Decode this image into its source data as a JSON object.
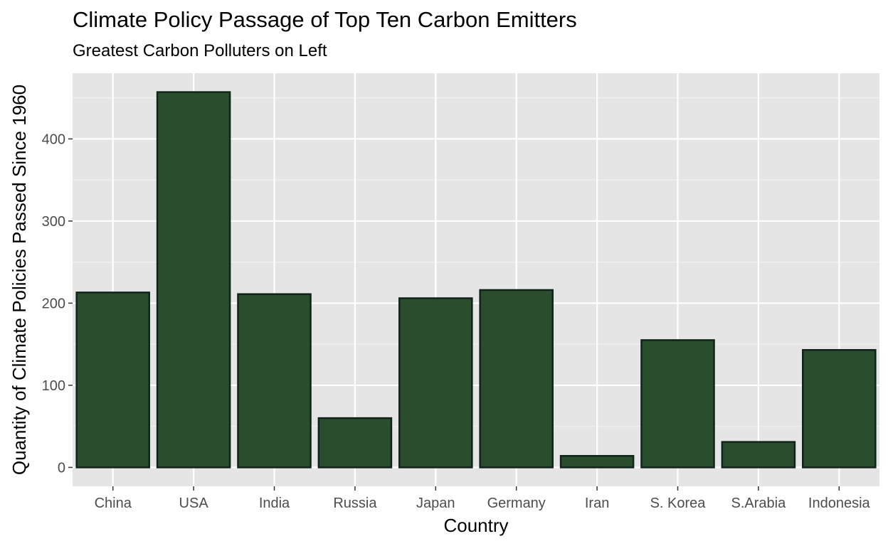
{
  "chart_data": {
    "type": "bar",
    "title": "Climate Policy Passage of Top Ten Carbon Emitters",
    "subtitle": "Greatest Carbon Polluters on Left",
    "xlabel": "Country",
    "ylabel": "Quantity of Climate Policies Passed Since 1960",
    "categories": [
      "China",
      "USA",
      "India",
      "Russia",
      "Japan",
      "Germany",
      "Iran",
      "S. Korea",
      "S.Arabia",
      "Indonesia"
    ],
    "values": [
      213,
      457,
      211,
      60,
      206,
      216,
      14,
      155,
      31,
      143
    ],
    "ylim": [
      -23,
      480
    ],
    "yticks": [
      0,
      100,
      200,
      300,
      400
    ],
    "ytick_labels": [
      "0",
      "100",
      "200",
      "300",
      "400"
    ],
    "grid": true,
    "legend": "none",
    "colors": {
      "bar_fill": "#2A4D2E",
      "bar_stroke": "#10241A",
      "panel_background": "#E5E5E5",
      "grid_major": "#FFFFFF",
      "grid_minor": "#F2F2F2",
      "tick_label": "#4D4D4D"
    }
  }
}
